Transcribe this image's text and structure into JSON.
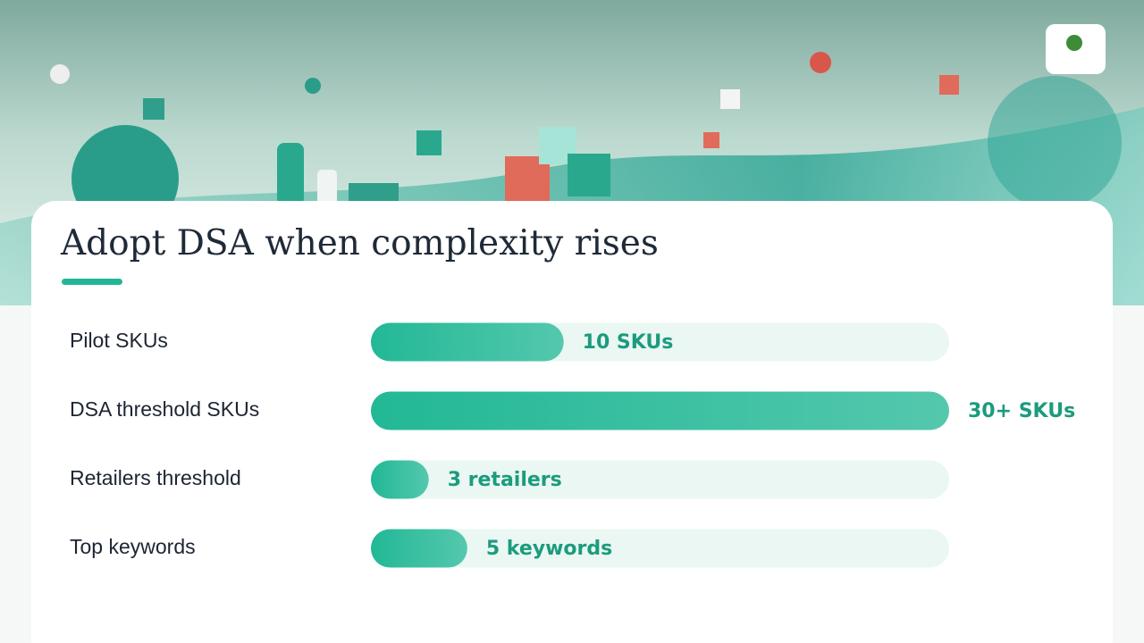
{
  "chart_data": {
    "type": "bar",
    "orientation": "horizontal",
    "title": "Adopt DSA when complexity rises",
    "categories": [
      "Pilot SKUs",
      "DSA threshold SKUs",
      "Retailers threshold",
      "Top keywords"
    ],
    "values": [
      10,
      30,
      3,
      5
    ],
    "value_labels": [
      "10 SKUs",
      "30+ SKUs",
      "3 retailers",
      "5 keywords"
    ],
    "color": "#22b896"
  }
}
